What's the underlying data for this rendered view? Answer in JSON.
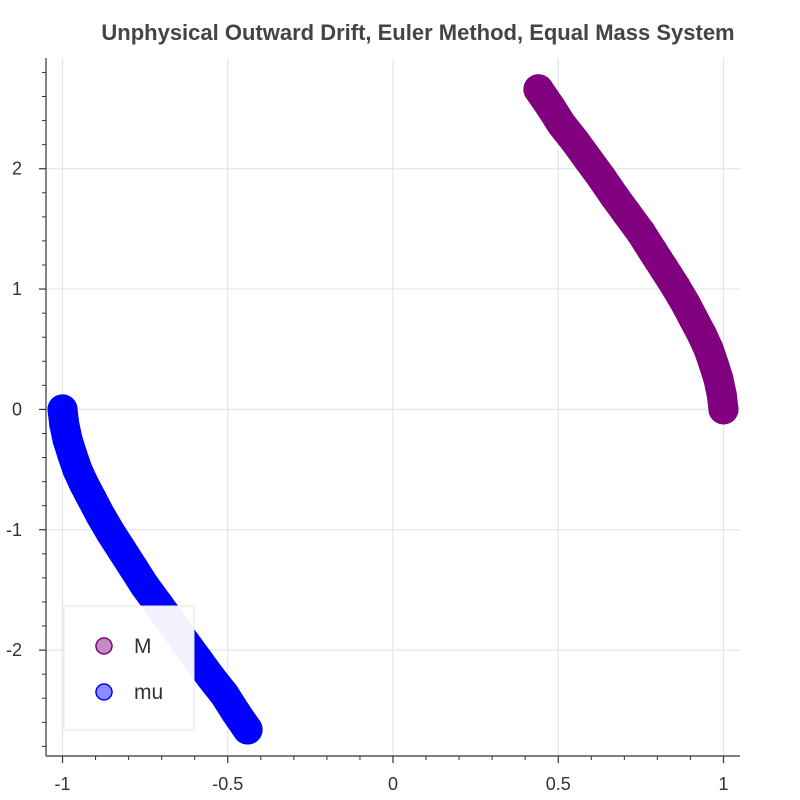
{
  "chart_data": {
    "type": "scatter",
    "title": "Unphysical Outward Drift, Euler Method, Equal Mass System",
    "xlabel": "",
    "ylabel": "",
    "xlim": [
      -1.05,
      1.05
    ],
    "ylim": [
      -2.88,
      2.92
    ],
    "x_ticks": [
      -1,
      -0.5,
      0,
      0.5,
      1
    ],
    "y_ticks": [
      -2,
      -1,
      0,
      1,
      2
    ],
    "x_tick_labels": [
      "-1",
      "-0.5",
      "0",
      "0.5",
      "1"
    ],
    "y_tick_labels": [
      "-2",
      "-1",
      "0",
      "1",
      "2"
    ],
    "grid": true,
    "legend_position": "bottom-left",
    "series": [
      {
        "name": "M",
        "color": "#800080",
        "x": [
          1.0,
          0.995,
          0.985,
          0.97,
          0.955,
          0.935,
          0.91,
          0.885,
          0.855,
          0.82,
          0.785,
          0.75,
          0.71,
          0.67,
          0.63,
          0.59,
          0.55,
          0.51,
          0.475,
          0.44
        ],
        "y": [
          0.0,
          0.12,
          0.25,
          0.38,
          0.5,
          0.62,
          0.75,
          0.88,
          1.02,
          1.17,
          1.32,
          1.47,
          1.62,
          1.77,
          1.93,
          2.08,
          2.23,
          2.37,
          2.52,
          2.66
        ]
      },
      {
        "name": "mu",
        "color": "#0000ff",
        "x": [
          -1.0,
          -0.995,
          -0.985,
          -0.97,
          -0.955,
          -0.935,
          -0.91,
          -0.885,
          -0.855,
          -0.82,
          -0.785,
          -0.75,
          -0.71,
          -0.67,
          -0.63,
          -0.59,
          -0.55,
          -0.51,
          -0.475,
          -0.44
        ],
        "y": [
          0.0,
          -0.12,
          -0.25,
          -0.38,
          -0.5,
          -0.62,
          -0.75,
          -0.88,
          -1.02,
          -1.17,
          -1.32,
          -1.47,
          -1.62,
          -1.77,
          -1.93,
          -2.08,
          -2.23,
          -2.37,
          -2.52,
          -2.66
        ]
      }
    ]
  }
}
